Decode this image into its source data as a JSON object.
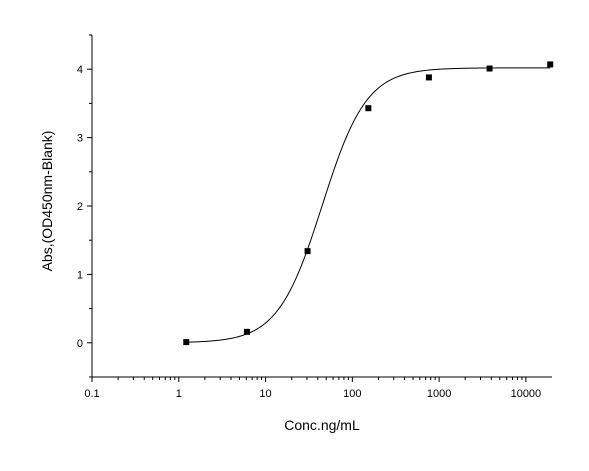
{
  "chart_data": {
    "type": "scatter",
    "title": "",
    "xlabel": "Conc.ng/mL",
    "ylabel": "Abs,(OD450nm-Blank)",
    "x_scale": "log",
    "xlim": [
      0.1,
      20000
    ],
    "ylim": [
      -0.5,
      4.5
    ],
    "x_ticks": [
      0.1,
      1,
      10,
      100,
      1000,
      10000
    ],
    "x_tick_labels": [
      "0.1",
      "1",
      "10",
      "100",
      "1000",
      "10000"
    ],
    "y_ticks": [
      0,
      1,
      2,
      3,
      4
    ],
    "y_tick_labels": [
      "0",
      "1",
      "2",
      "3",
      "4"
    ],
    "grid": false,
    "legend": "none",
    "series": [
      {
        "points": [
          {
            "x": 1.22,
            "y": 0.01
          },
          {
            "x": 6.1,
            "y": 0.16
          },
          {
            "x": 30.5,
            "y": 1.34
          },
          {
            "x": 153,
            "y": 3.43
          },
          {
            "x": 763,
            "y": 3.88
          },
          {
            "x": 3815,
            "y": 4.01
          },
          {
            "x": 19073,
            "y": 4.07
          }
        ],
        "fit": {
          "model": "4PL",
          "bottom": 0.0,
          "top": 4.02,
          "ec50": 45,
          "hill": 1.7,
          "x_range": [
            1.22,
            19073
          ]
        }
      }
    ]
  }
}
